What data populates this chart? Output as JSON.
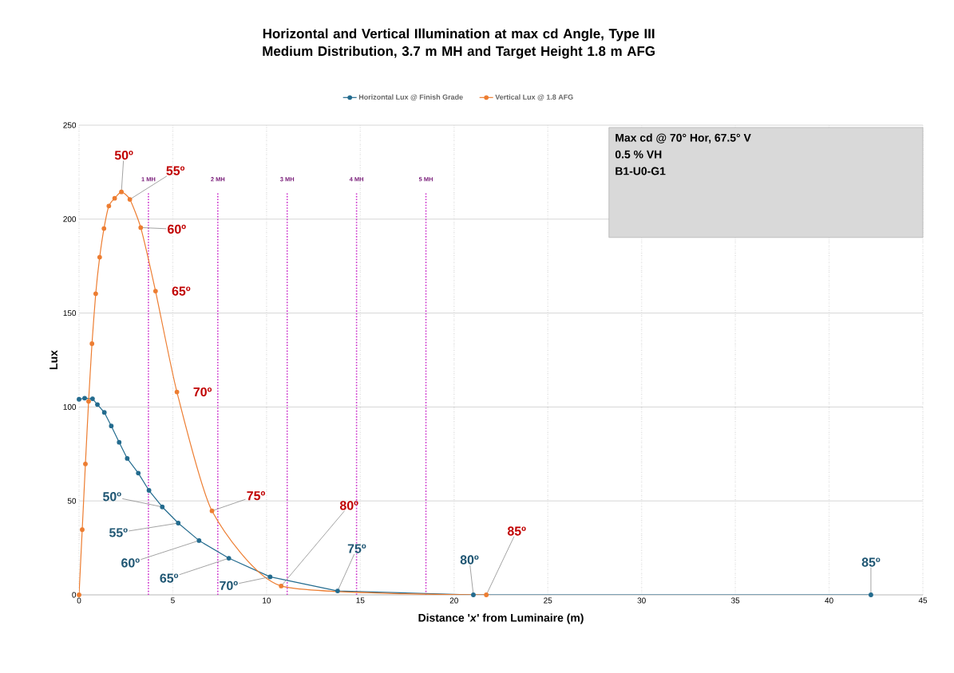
{
  "chart_data": {
    "type": "line",
    "title": "Horizontal and Vertical Illumination at max cd Angle, Type III Medium Distribution, 3.7 m MH and Target Height 1.8 m AFG",
    "xlabel": "Distance '*x*' from Luminaire (m)",
    "ylabel": "Lux",
    "series": [
      {
        "name": "Horizontal Lux @ Finish Grade",
        "color": "#236b8e",
        "x": [
          0,
          0.3,
          0.72,
          0.98,
          1.35,
          1.72,
          2.14,
          2.57,
          3.16,
          3.73,
          4.44,
          5.29,
          6.4,
          7.99,
          10.19,
          13.79,
          21.03,
          42.23
        ],
        "values": [
          104.1,
          104.7,
          104.4,
          101.3,
          97.1,
          89.9,
          81.2,
          72.6,
          64.8,
          55.6,
          46.8,
          38.2,
          28.9,
          19.5,
          9.6,
          2.1,
          0,
          0
        ]
      },
      {
        "name": "Vertical Lux @ 1.8 AFG",
        "color": "#ed7d31",
        "x": [
          0,
          0.17,
          0.34,
          0.51,
          0.69,
          0.89,
          1.1,
          1.33,
          1.59,
          1.9,
          2.26,
          2.71,
          3.29,
          4.08,
          5.22,
          7.09,
          10.78,
          21.72
        ],
        "values": [
          0,
          34.7,
          69.7,
          103,
          133.7,
          160.3,
          179.7,
          195,
          207,
          211.1,
          214.5,
          210.5,
          195.5,
          161.7,
          108,
          44.7,
          4.7,
          0
        ]
      }
    ],
    "xlim": [
      0,
      45
    ],
    "ylim": [
      0,
      250
    ],
    "xticks": [
      0,
      5,
      10,
      15,
      20,
      25,
      30,
      35,
      40,
      45
    ],
    "yticks": [
      0,
      50,
      100,
      150,
      200,
      250
    ],
    "grid": true,
    "legend": "top",
    "marker": "circle",
    "line_style": "solid",
    "ref_lines": [
      {
        "axis": "x",
        "value": 3.7,
        "label": "1 MH",
        "color": "#cc33cc",
        "line_style": "dotted"
      },
      {
        "axis": "x",
        "value": 7.4,
        "label": "2 MH",
        "color": "#cc33cc",
        "line_style": "dotted"
      },
      {
        "axis": "x",
        "value": 11.1,
        "label": "3 MH",
        "color": "#cc33cc",
        "line_style": "dotted"
      },
      {
        "axis": "x",
        "value": 14.8,
        "label": "4 MH",
        "color": "#cc33cc",
        "line_style": "dotted"
      },
      {
        "axis": "x",
        "value": 18.5,
        "label": "5 MH",
        "color": "#cc33cc",
        "line_style": "dotted"
      }
    ],
    "annotations": [
      {
        "text": "50º",
        "x": 2.26,
        "y": 214.5
      },
      {
        "text": "55º",
        "x": 2.71,
        "y": 210.5
      },
      {
        "text": "60º",
        "x": 3.29,
        "y": 195.5
      },
      {
        "text": "65º",
        "x": 4.08,
        "y": 161.7
      },
      {
        "text": "70º",
        "x": 5.22,
        "y": 108
      },
      {
        "text": "75º",
        "x": 7.09,
        "y": 44.7
      },
      {
        "text": "80º",
        "x": 10.78,
        "y": 4.7
      },
      {
        "text": "85º",
        "x": 21.72,
        "y": 0
      },
      {
        "text": "50º",
        "x": 4.44,
        "y": 46.8
      },
      {
        "text": "55º",
        "x": 5.29,
        "y": 38.2
      },
      {
        "text": "60º",
        "x": 6.4,
        "y": 28.9
      },
      {
        "text": "65º",
        "x": 7.99,
        "y": 19.5
      },
      {
        "text": "70º",
        "x": 10.19,
        "y": 9.6
      },
      {
        "text": "75º",
        "x": 13.79,
        "y": 2.1
      },
      {
        "text": "80º",
        "x": 21.03,
        "y": 0
      },
      {
        "text": "85º",
        "x": 42.23,
        "y": 0
      },
      "Max cd @ 70° Hor, 67.5° V",
      "0.5 % VH",
      "B1-U0-G1"
    ]
  }
}
